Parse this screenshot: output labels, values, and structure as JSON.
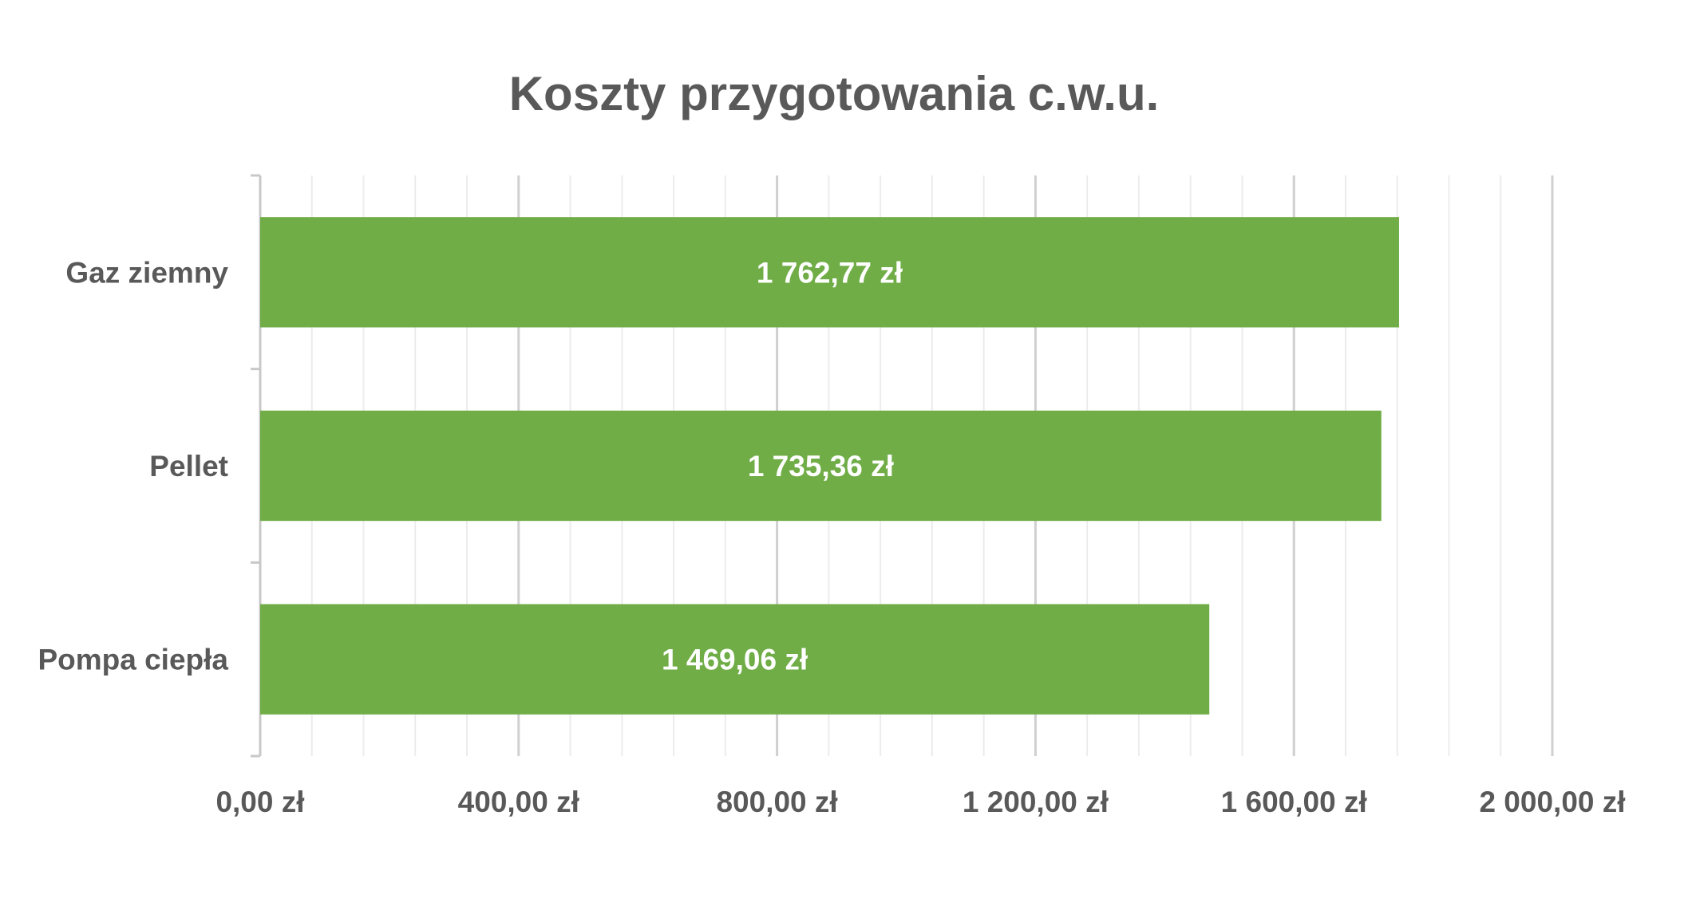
{
  "chart_data": {
    "type": "bar",
    "orientation": "horizontal",
    "title": "Koszty przygotowania c.w.u.",
    "categories": [
      "Gaz ziemny",
      "Pellet",
      "Pompa ciepła"
    ],
    "values": [
      1762.77,
      1735.36,
      1469.06
    ],
    "data_labels": [
      "1 762,77 zł",
      "1 735,36 zł",
      "1 469,06 zł"
    ],
    "xlim": [
      0,
      2000
    ],
    "x_ticks": [
      0,
      400,
      800,
      1200,
      1600,
      2000
    ],
    "x_tick_labels": [
      "0,00 zł",
      "400,00 zł",
      "800,00 zł",
      "1 200,00 zł",
      "1 600,00 zł",
      "2 000,00 zł"
    ],
    "minor_gridlines_per_major": 5,
    "grid": true,
    "legend": "none",
    "xlabel": "",
    "ylabel": "",
    "colors": {
      "bar": "#70ad47",
      "text": "#595959",
      "data_label": "#ffffff",
      "major_grid": "#d0d0d0",
      "minor_grid": "#ececec",
      "axis": "#c8c8c8"
    }
  }
}
